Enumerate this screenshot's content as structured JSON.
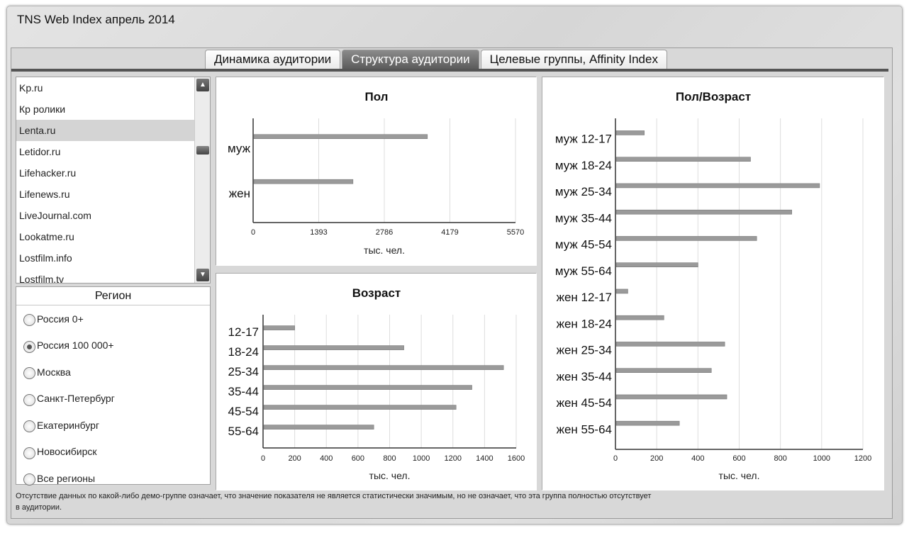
{
  "app": {
    "title": "TNS Web Index апрель 2014"
  },
  "tabs": [
    {
      "label": "Динамика аудитории",
      "active": false
    },
    {
      "label": "Структура аудитории",
      "active": true
    },
    {
      "label": "Целевые группы, Affinity Index",
      "active": false
    }
  ],
  "sites": {
    "items": [
      "Kp.ru",
      "Кр ролики",
      "Lenta.ru",
      "Letidor.ru",
      "Lifehacker.ru",
      "Lifenews.ru",
      "LiveJournal.com",
      "Lookatme.ru",
      "Lostfilm.info",
      "Lostfilm.tv"
    ],
    "selected": "Lenta.ru",
    "scroll_up_icon": "triangle-up-icon",
    "scroll_down_icon": "triangle-down-icon"
  },
  "region": {
    "title": "Регион",
    "options": [
      "Россия 0+",
      "Россия 100 000+",
      "Москва",
      "Санкт-Петербург",
      "Екатеринбург",
      "Новосибирск",
      "Все регионы"
    ],
    "selected": "Россия 100 000+"
  },
  "note": "Отсутствие данных по какой-либо демо-группе означает, что значение показателя не является статистически значимым, но не означает, что эта группа полностью отсутствует в аудитории.",
  "colors": {
    "bar": "#9a9a9a",
    "grid": "#dddddd",
    "tab_active": "#6e6e6e"
  },
  "chart_data": [
    {
      "type": "bar",
      "orientation": "horizontal",
      "title": "Пол",
      "categories": [
        "муж",
        "жен"
      ],
      "values": [
        3700,
        2120
      ],
      "xlabel": "тыс. чел.",
      "xlim": [
        0,
        5570
      ],
      "ticks": [
        "0",
        "1393",
        "2786",
        "4179",
        "5570"
      ],
      "grid": true
    },
    {
      "type": "bar",
      "orientation": "horizontal",
      "title": "Возраст",
      "categories": [
        "12-17",
        "18-24",
        "25-34",
        "35-44",
        "45-54",
        "55-64"
      ],
      "values": [
        200,
        890,
        1520,
        1320,
        1220,
        700
      ],
      "xlabel": "тыс. чел.",
      "xlim": [
        0,
        1600
      ],
      "ticks": [
        "0",
        "200",
        "400",
        "600",
        "800",
        "1000",
        "1200",
        "1400",
        "1600"
      ],
      "grid": true
    },
    {
      "type": "bar",
      "orientation": "horizontal",
      "title": "Пол/Возраст",
      "categories": [
        "муж 12-17",
        "муж 18-24",
        "муж 25-34",
        "муж 35-44",
        "муж 45-54",
        "муж 55-64",
        "жен 12-17",
        "жен 18-24",
        "жен 25-34",
        "жен 35-44",
        "жен 45-54",
        "жен 55-64"
      ],
      "values": [
        140,
        655,
        990,
        855,
        685,
        400,
        60,
        235,
        530,
        465,
        540,
        310
      ],
      "xlabel": "тыс. чел.",
      "xlim": [
        0,
        1200
      ],
      "ticks": [
        "0",
        "200",
        "400",
        "600",
        "800",
        "1000",
        "1200"
      ],
      "grid": true
    }
  ]
}
